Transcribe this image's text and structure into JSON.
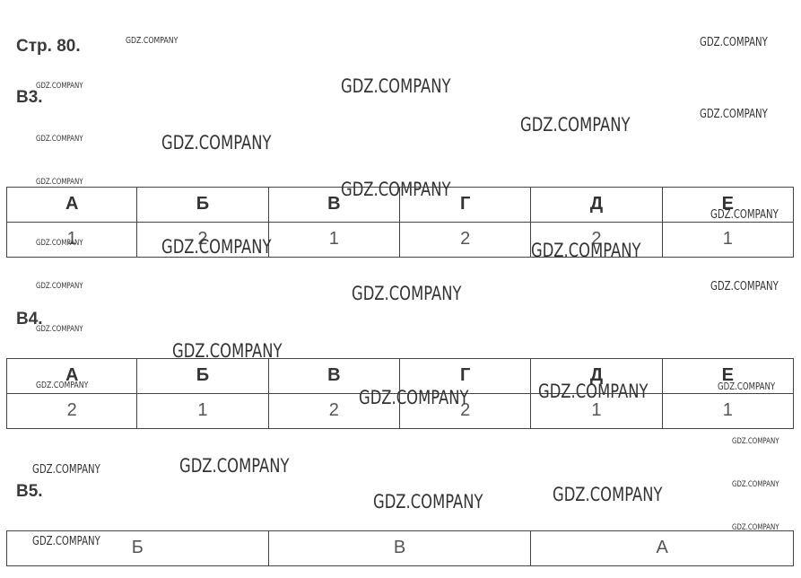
{
  "page": "Стр. 80.",
  "sections": [
    {
      "label": "В3.",
      "table": {
        "header": [
          "А",
          "Б",
          "В",
          "Г",
          "Д",
          "Е"
        ],
        "rows": [
          [
            1,
            2,
            1,
            2,
            2,
            1
          ]
        ]
      }
    },
    {
      "label": "В4.",
      "table": {
        "header": [
          "А",
          "Б",
          "В",
          "Г",
          "Д",
          "Е"
        ],
        "rows": [
          [
            2,
            1,
            2,
            2,
            1,
            1
          ]
        ]
      }
    },
    {
      "label": "В5.",
      "table": {
        "header": [],
        "rows": [
          [
            "Б",
            "В",
            "А"
          ]
        ]
      }
    }
  ],
  "watermarks": [
    "GDZ.COMPANY",
    "GDZ.COMPANY",
    "GDZ.COMPANY",
    "GDZ.COMPANY",
    "GDZ.COMPANY",
    "GDZ.COMPANY",
    "GDZ.COMPANY",
    "GDZ.COMPANY",
    "GDZ.COMPANY",
    "GDZ.COMPANY",
    "GDZ.COMPANY",
    "GDZ.COMPANY",
    "GDZ.COMPANY",
    "GDZ.COMPANY",
    "GDZ.COMPANY",
    "GDZ.COMPANY",
    "GDZ.COMPANY",
    "GDZ.COMPANY",
    "GDZ.COMPANY",
    "GDZ.COMPANY",
    "GDZ.COMPANY",
    "GDZ.COMPANY",
    "GDZ.COMPANY",
    "GDZ.COMPANY",
    "GDZ.COMPANY",
    "GDZ.COMPANY",
    "GDZ.COMPANY",
    "GDZ.COMPANY",
    "GDZ.COMPANY",
    "GDZ.COMPANY",
    "GDZ.COMPANY"
  ]
}
